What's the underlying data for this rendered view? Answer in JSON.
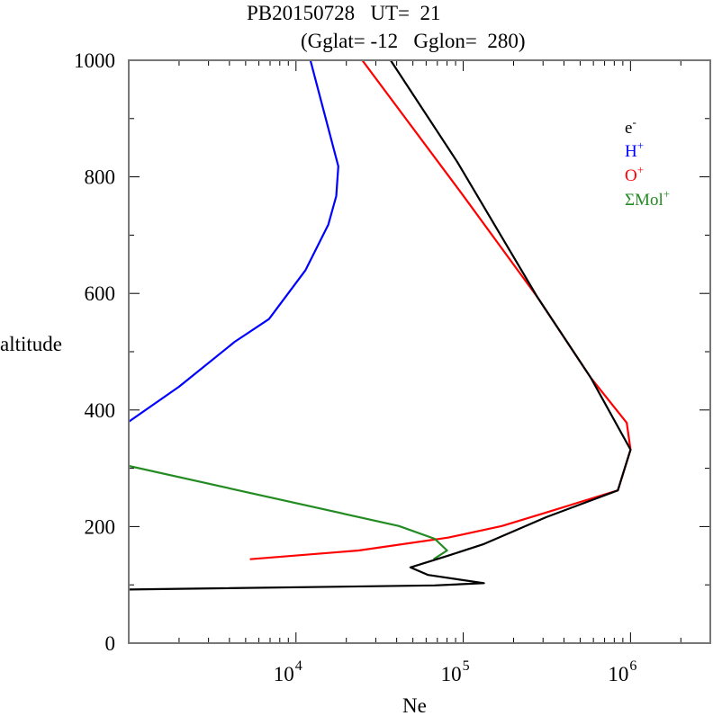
{
  "chart_data": {
    "type": "line",
    "title": "PB20150728   UT=  21",
    "subtitle": "(Gglat= -12   Gglon=  280)",
    "xlabel": "Ne",
    "ylabel": "altitude",
    "xscale": "log",
    "xlim": [
      1000,
      3000000
    ],
    "ylim": [
      0,
      1000
    ],
    "x_ticks": [
      {
        "value": 10000,
        "base": "10",
        "exp": "4"
      },
      {
        "value": 100000,
        "base": "10",
        "exp": "5"
      },
      {
        "value": 1000000,
        "base": "10",
        "exp": "6"
      }
    ],
    "y_ticks": [
      {
        "value": 0,
        "label": "0"
      },
      {
        "value": 200,
        "label": "200"
      },
      {
        "value": 400,
        "label": "400"
      },
      {
        "value": 600,
        "label": "600"
      },
      {
        "value": 800,
        "label": "800"
      },
      {
        "value": 1000,
        "label": "1000"
      }
    ],
    "grid": false,
    "legend_position": "top-right",
    "series": [
      {
        "name": "e-",
        "label_base": "e",
        "label_sup": "-",
        "color": "#000000",
        "points": [
          [
            36800,
            1000
          ],
          [
            92000,
            826
          ],
          [
            277000,
            594
          ],
          [
            580000,
            455
          ],
          [
            1000000,
            332
          ],
          [
            840000,
            262
          ],
          [
            313000,
            216
          ],
          [
            133000,
            170
          ],
          [
            81000,
            150
          ],
          [
            48300,
            130
          ],
          [
            61700,
            117
          ],
          [
            133000,
            103
          ],
          [
            67500,
            99
          ],
          [
            1000,
            92
          ]
        ]
      },
      {
        "name": "H+",
        "label_base": "H",
        "label_sup": "+",
        "color": "#0000ff",
        "points": [
          [
            12200,
            1000
          ],
          [
            17900,
            818
          ],
          [
            17400,
            767
          ],
          [
            15600,
            718
          ],
          [
            11400,
            640
          ],
          [
            6900,
            556
          ],
          [
            4300,
            517
          ],
          [
            2000,
            440
          ],
          [
            1000,
            380
          ]
        ]
      },
      {
        "name": "O+",
        "label_base": "O",
        "label_sup": "+",
        "color": "#ff0000",
        "points": [
          [
            24900,
            1000
          ],
          [
            97500,
            772
          ],
          [
            277000,
            594
          ],
          [
            580000,
            455
          ],
          [
            950000,
            378
          ],
          [
            1000000,
            332
          ],
          [
            840000,
            262
          ],
          [
            313000,
            224
          ],
          [
            170000,
            201
          ],
          [
            81000,
            181
          ],
          [
            23700,
            159
          ],
          [
            5300,
            144
          ]
        ]
      },
      {
        "name": "ΣMol+",
        "label_base": "ΣMol",
        "label_sup": "+",
        "color": "#228b22",
        "points": [
          [
            1000,
            304
          ],
          [
            41300,
            201
          ],
          [
            67500,
            179
          ],
          [
            80000,
            159
          ],
          [
            66500,
            144
          ]
        ]
      }
    ]
  }
}
